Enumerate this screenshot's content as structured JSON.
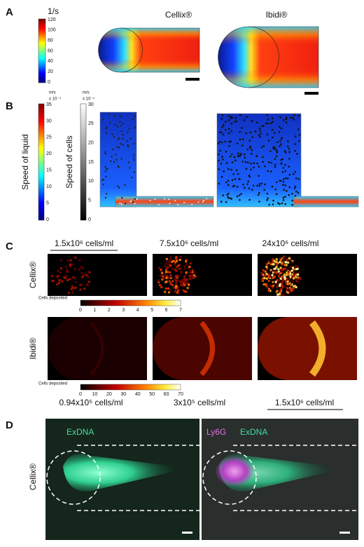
{
  "panel_a": {
    "label": "A",
    "colorbar": {
      "unit": "1/s",
      "ticks": [
        120,
        100,
        80,
        60,
        40,
        20,
        0
      ]
    },
    "titles": [
      "Cellix®",
      "Ibidi®"
    ]
  },
  "panel_b": {
    "label": "B",
    "liquid_colorbar": {
      "unit": "m/s",
      "scale": "x 10⁻⁴",
      "ticks": [
        35,
        30,
        25,
        20,
        15,
        10,
        5,
        0
      ],
      "title": "Speed of liquid"
    },
    "cells_colorbar": {
      "unit": "m/s",
      "scale": "x 10⁻⁴",
      "ticks": [
        30,
        25,
        20,
        15,
        10,
        5,
        0
      ],
      "title": "Speed of cells"
    }
  },
  "panel_c": {
    "label": "C",
    "top_concentrations": [
      "1.5x10⁶ cells/ml",
      "7.5x10⁶ cells/ml",
      "24x10⁶ cells/ml"
    ],
    "bottom_concentrations": [
      "0.94x10⁵ cells/ml",
      "3x10⁵ cells/ml",
      "1.5x10⁶ cells/ml"
    ],
    "rows": [
      "Cellix®",
      "Ibidi®"
    ],
    "colorbars": [
      {
        "title": "Cells deposited",
        "ticks": [
          0,
          1,
          2,
          3,
          4,
          5,
          6,
          7
        ]
      },
      {
        "title": "Cells deposited",
        "ticks": [
          0,
          10,
          20,
          30,
          40,
          50,
          60,
          70
        ]
      }
    ]
  },
  "panel_d": {
    "label": "D",
    "row": "Cellix®",
    "left_channel": "ExDNA",
    "right_channels": [
      "Ly6G",
      "ExDNA"
    ]
  }
}
